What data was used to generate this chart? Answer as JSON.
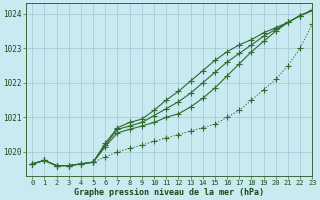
{
  "title": "Graphe pression niveau de la mer (hPa)",
  "background_color": "#c8eaf0",
  "grid_color": "#aaccd8",
  "line_color": "#2d6a2d",
  "xlim": [
    -0.5,
    23
  ],
  "ylim": [
    1019.3,
    1024.3
  ],
  "xticks": [
    0,
    1,
    2,
    3,
    4,
    5,
    6,
    7,
    8,
    9,
    10,
    11,
    12,
    13,
    14,
    15,
    16,
    17,
    18,
    19,
    20,
    21,
    22,
    23
  ],
  "yticks": [
    1020,
    1021,
    1022,
    1023,
    1024
  ],
  "series": [
    {
      "x": [
        0,
        1,
        2,
        3,
        4,
        5,
        6,
        7,
        8,
        9,
        10,
        11,
        12,
        13,
        14,
        15,
        16,
        17,
        18,
        19,
        20,
        21,
        22,
        23
      ],
      "y": [
        1019.65,
        1019.75,
        1019.6,
        1019.6,
        1019.65,
        1019.7,
        1019.85,
        1020.0,
        1020.1,
        1020.2,
        1020.3,
        1020.4,
        1020.5,
        1020.6,
        1020.7,
        1020.8,
        1021.0,
        1021.2,
        1021.5,
        1021.8,
        1022.1,
        1022.5,
        1023.0,
        1023.7
      ],
      "style": "dotted",
      "marker": "+",
      "markersize": 4
    },
    {
      "x": [
        0,
        1,
        2,
        3,
        4,
        5,
        6,
        7,
        8,
        9,
        10,
        11,
        12,
        13,
        14,
        15,
        16,
        17,
        18,
        19,
        20,
        21,
        22,
        23
      ],
      "y": [
        1019.65,
        1019.75,
        1019.6,
        1019.6,
        1019.65,
        1019.7,
        1020.15,
        1020.55,
        1020.65,
        1020.75,
        1020.85,
        1021.0,
        1021.1,
        1021.3,
        1021.55,
        1021.85,
        1022.2,
        1022.55,
        1022.9,
        1023.2,
        1023.5,
        1023.75,
        1023.95,
        1024.1
      ],
      "style": "solid",
      "marker": "+",
      "markersize": 4
    },
    {
      "x": [
        0,
        1,
        2,
        3,
        4,
        5,
        6,
        7,
        8,
        9,
        10,
        11,
        12,
        13,
        14,
        15,
        16,
        17,
        18,
        19,
        20,
        21,
        22,
        23
      ],
      "y": [
        1019.65,
        1019.75,
        1019.6,
        1019.6,
        1019.65,
        1019.7,
        1020.2,
        1020.65,
        1020.75,
        1020.85,
        1021.05,
        1021.25,
        1021.45,
        1021.7,
        1022.0,
        1022.3,
        1022.6,
        1022.85,
        1023.1,
        1023.35,
        1023.55,
        1023.75,
        1023.95,
        1024.1
      ],
      "style": "solid",
      "marker": "+",
      "markersize": 4
    },
    {
      "x": [
        0,
        1,
        2,
        3,
        4,
        5,
        6,
        7,
        8,
        9,
        10,
        11,
        12,
        13,
        14,
        15,
        16,
        17,
        18,
        19,
        20,
        21,
        22,
        23
      ],
      "y": [
        1019.65,
        1019.75,
        1019.6,
        1019.6,
        1019.65,
        1019.7,
        1020.25,
        1020.7,
        1020.85,
        1020.95,
        1021.2,
        1021.5,
        1021.75,
        1022.05,
        1022.35,
        1022.65,
        1022.9,
        1023.1,
        1023.25,
        1023.45,
        1023.6,
        1023.75,
        1023.95,
        1024.1
      ],
      "style": "solid",
      "marker": "+",
      "markersize": 4
    }
  ]
}
